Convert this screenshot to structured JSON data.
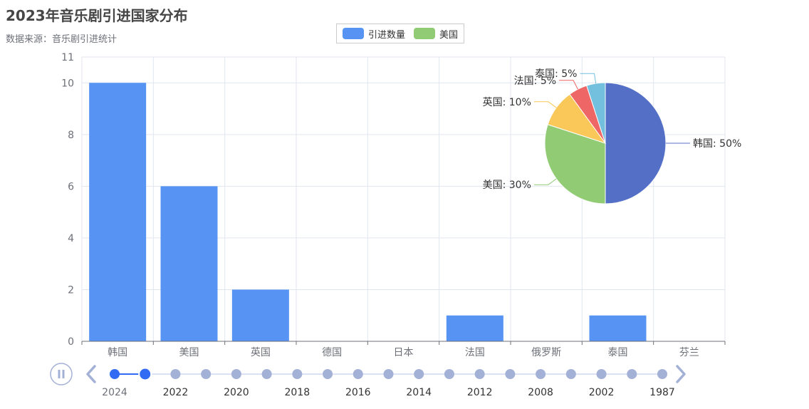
{
  "title": "2023年音乐剧引进国家分布",
  "subtitle": "数据来源：音乐剧引进统计",
  "legend": [
    {
      "label": "引进数量",
      "color": "#5793f3"
    },
    {
      "label": "美国",
      "color": "#91cc75"
    }
  ],
  "timeline": {
    "labels": [
      "2024",
      "2022",
      "2020",
      "2018",
      "2016",
      "2014",
      "2012",
      "2008",
      "2002",
      "1987"
    ],
    "current_index": 1,
    "active_color": "#316bf3",
    "inactive_color": "#a4b1d7"
  },
  "chart_data": [
    {
      "type": "bar",
      "categories": [
        "韩国",
        "美国",
        "英国",
        "德国",
        "日本",
        "法国",
        "俄罗斯",
        "泰国",
        "芬兰"
      ],
      "values": [
        10,
        6,
        2,
        0,
        0,
        1,
        0,
        1,
        0
      ],
      "series_name": "引进数量",
      "ylim": [
        0,
        11
      ],
      "yticks": [
        0,
        2,
        4,
        6,
        8,
        10,
        11
      ],
      "color": "#5793f3",
      "grid": true
    },
    {
      "type": "pie",
      "slices": [
        {
          "name": "韩国",
          "value": 50,
          "label": "韩国: 50%",
          "color": "#5470c6"
        },
        {
          "name": "美国",
          "value": 30,
          "label": "美国: 30%",
          "color": "#91cc75"
        },
        {
          "name": "英国",
          "value": 10,
          "label": "英国: 10%",
          "color": "#fac858"
        },
        {
          "name": "法国",
          "value": 5,
          "label": "法国: 5%",
          "color": "#ee6666"
        },
        {
          "name": "泰国",
          "value": 5,
          "label": "泰国: 5%",
          "color": "#73c0de"
        }
      ]
    }
  ]
}
